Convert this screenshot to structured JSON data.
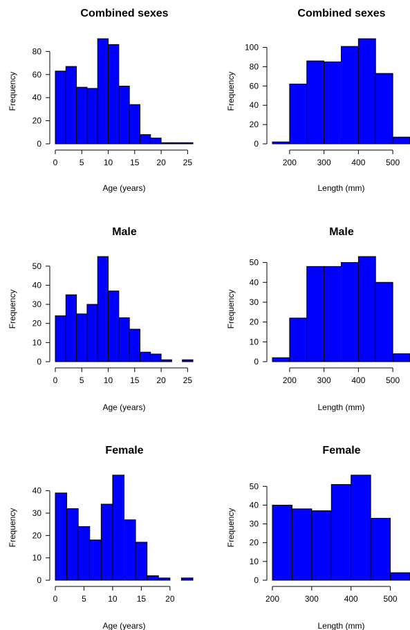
{
  "chart_data": [
    {
      "type": "bar",
      "title": "Combined sexes",
      "xlabel": "Age (years)",
      "ylabel": "Frequency",
      "bin_edges": [
        0,
        2,
        4,
        6,
        8,
        10,
        12,
        14,
        16,
        18,
        20,
        22,
        24,
        26
      ],
      "values": [
        63,
        67,
        49,
        48,
        91,
        86,
        50,
        34,
        8,
        5,
        1,
        1,
        1
      ],
      "xticks": [
        0,
        5,
        10,
        15,
        20,
        25
      ],
      "yticks": [
        0,
        20,
        40,
        60,
        80
      ],
      "xlim": [
        0,
        26
      ],
      "ylim": [
        0,
        91
      ],
      "bar_color": "#0000ff"
    },
    {
      "type": "bar",
      "title": "Combined sexes",
      "xlabel": "Length (mm)",
      "ylabel": "Frequency",
      "bin_edges": [
        150,
        200,
        250,
        300,
        350,
        400,
        450,
        500,
        550
      ],
      "values": [
        2,
        62,
        86,
        85,
        101,
        109,
        73,
        7
      ],
      "xticks": [
        200,
        300,
        400,
        500
      ],
      "yticks": [
        0,
        20,
        40,
        60,
        80,
        100
      ],
      "xlim": [
        150,
        550
      ],
      "ylim": [
        0,
        109
      ],
      "bar_color": "#0000ff"
    },
    {
      "type": "bar",
      "title": "Male",
      "xlabel": "Age (years)",
      "ylabel": "Frequency",
      "bin_edges": [
        0,
        2,
        4,
        6,
        8,
        10,
        12,
        14,
        16,
        18,
        20,
        22,
        24,
        26
      ],
      "values": [
        24,
        35,
        25,
        30,
        55,
        37,
        23,
        17,
        5,
        4,
        1,
        0,
        1
      ],
      "xticks": [
        0,
        5,
        10,
        15,
        20,
        25
      ],
      "yticks": [
        0,
        10,
        20,
        30,
        40,
        50
      ],
      "xlim": [
        0,
        26
      ],
      "ylim": [
        0,
        55
      ],
      "bar_color": "#0000ff"
    },
    {
      "type": "bar",
      "title": "Male",
      "xlabel": "Length (mm)",
      "ylabel": "Frequency",
      "bin_edges": [
        150,
        200,
        250,
        300,
        350,
        400,
        450,
        500,
        550
      ],
      "values": [
        2,
        22,
        48,
        48,
        50,
        53,
        40,
        4
      ],
      "xticks": [
        200,
        300,
        400,
        500
      ],
      "yticks": [
        0,
        10,
        20,
        30,
        40,
        50
      ],
      "xlim": [
        150,
        550
      ],
      "ylim": [
        0,
        53
      ],
      "bar_color": "#0000ff"
    },
    {
      "type": "bar",
      "title": "Female",
      "xlabel": "Age (years)",
      "ylabel": "Frequency",
      "bin_edges": [
        0,
        2,
        4,
        6,
        8,
        10,
        12,
        14,
        16,
        18,
        20,
        22,
        24
      ],
      "values": [
        39,
        32,
        24,
        18,
        34,
        47,
        27,
        17,
        2,
        1,
        0,
        1
      ],
      "xticks": [
        0,
        5,
        10,
        15,
        20
      ],
      "yticks": [
        0,
        10,
        20,
        30,
        40
      ],
      "xlim": [
        0,
        24
      ],
      "ylim": [
        0,
        47
      ],
      "bar_color": "#0000ff"
    },
    {
      "type": "bar",
      "title": "Female",
      "xlabel": "Length (mm)",
      "ylabel": "Frequency",
      "bin_edges": [
        200,
        250,
        300,
        350,
        400,
        450,
        500,
        550
      ],
      "values": [
        40,
        38,
        37,
        51,
        56,
        33,
        4
      ],
      "xticks": [
        200,
        300,
        400,
        500
      ],
      "yticks": [
        0,
        10,
        20,
        30,
        40,
        50
      ],
      "xlim": [
        200,
        550
      ],
      "ylim": [
        0,
        56
      ],
      "bar_color": "#0000ff"
    }
  ]
}
